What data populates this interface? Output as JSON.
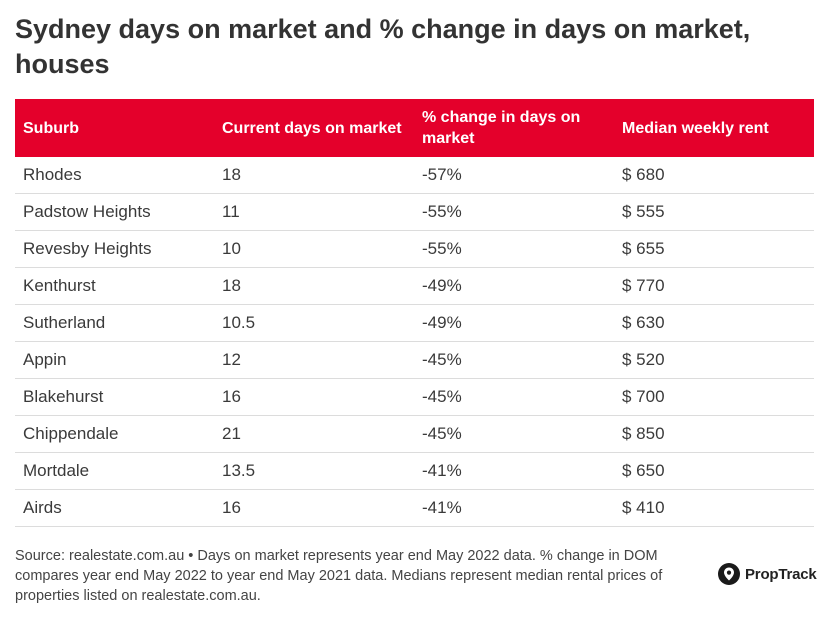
{
  "chart_data": {
    "type": "table",
    "title": "Sydney days on market and % change in days on market, houses",
    "columns": [
      "Suburb",
      "Current days on market",
      "% change in days on market",
      "Median weekly rent"
    ],
    "rows": [
      [
        "Rhodes",
        "18",
        "-57%",
        "$ 680"
      ],
      [
        "Padstow Heights",
        "11",
        "-55%",
        "$ 555"
      ],
      [
        "Revesby Heights",
        "10",
        "-55%",
        "$ 655"
      ],
      [
        "Kenthurst",
        "18",
        "-49%",
        "$ 770"
      ],
      [
        "Sutherland",
        "10.5",
        "-49%",
        "$ 630"
      ],
      [
        "Appin",
        "12",
        "-45%",
        "$ 520"
      ],
      [
        "Blakehurst",
        "16",
        "-45%",
        "$ 700"
      ],
      [
        "Chippendale",
        "21",
        "-45%",
        "$ 850"
      ],
      [
        "Mortdale",
        "13.5",
        "-41%",
        "$ 650"
      ],
      [
        "Airds",
        "16",
        "-41%",
        "$ 410"
      ]
    ]
  },
  "footer": {
    "source": "Source: realestate.com.au • Days on market represents year end May 2022 data. % change in DOM compares year end May 2022 to year end May 2021 data. Medians represent median rental prices of properties listed on realestate.com.au."
  },
  "brand": {
    "logo_text": "PropTrack",
    "logo_icon": "proptrack-logo-icon",
    "header_color": "#e4002b"
  }
}
